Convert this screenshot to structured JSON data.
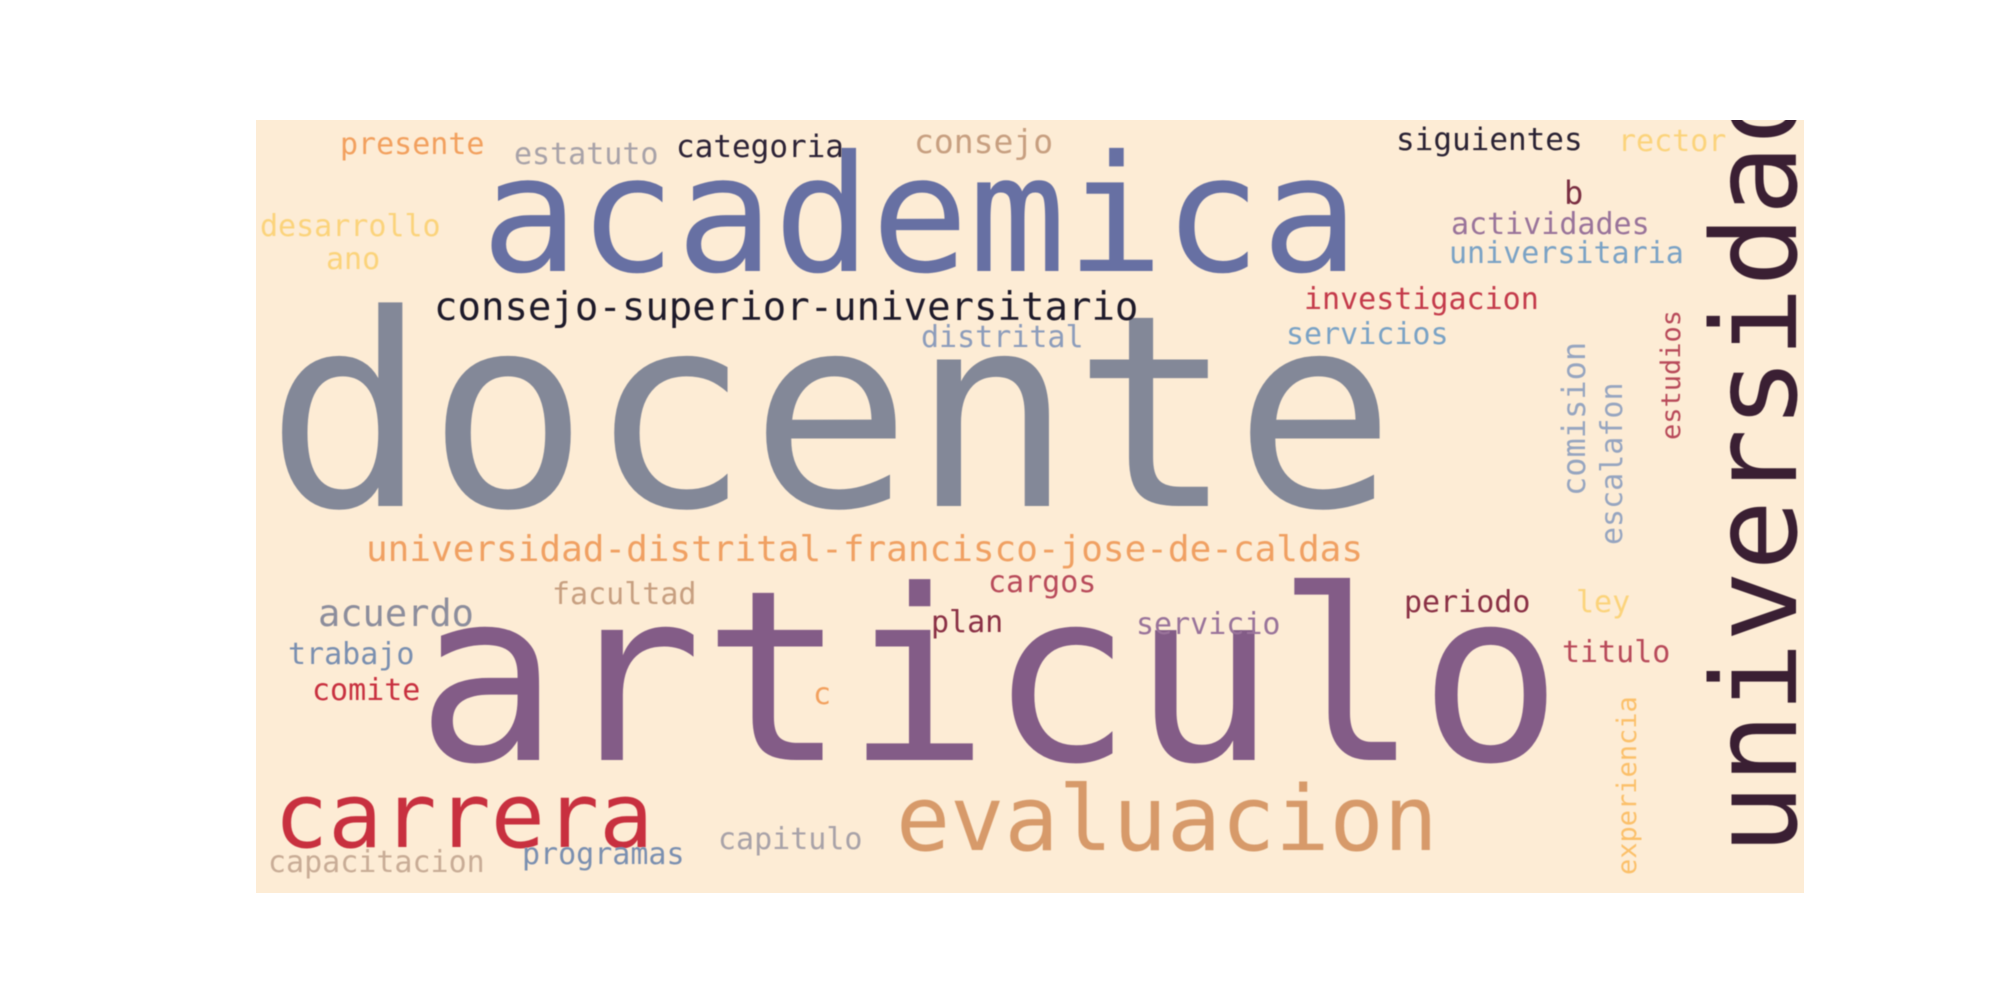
{
  "wordcloud": {
    "background_color": "#fdecd5",
    "words": [
      {
        "id": "docente",
        "text": "docente",
        "color": "#838898"
      },
      {
        "id": "articulo",
        "text": "articulo",
        "color": "#835c87"
      },
      {
        "id": "academica",
        "text": "academica",
        "color": "#6770a3"
      },
      {
        "id": "universidad",
        "text": "universidad",
        "color": "#3a1f33"
      },
      {
        "id": "evaluacion",
        "text": "evaluacion",
        "color": "#d79a6a"
      },
      {
        "id": "carrera",
        "text": "carrera",
        "color": "#c8303f"
      },
      {
        "id": "consejo_superior_universitario",
        "text": "consejo-superior-universitario",
        "color": "#1e1a2a"
      },
      {
        "id": "universidad_distrital_francisco_jose_de_caldas",
        "text": "universidad-distrital-francisco-jose-de-caldas",
        "color": "#f0a062"
      },
      {
        "id": "acuerdo",
        "text": "acuerdo",
        "color": "#8c8d9c"
      },
      {
        "id": "consejo",
        "text": "consejo",
        "color": "#c79f80"
      },
      {
        "id": "siguientes",
        "text": "siguientes",
        "color": "#2a2233"
      },
      {
        "id": "categoria",
        "text": "categoria",
        "color": "#2c2236"
      },
      {
        "id": "estatuto",
        "text": "estatuto",
        "color": "#a8a2a8"
      },
      {
        "id": "presente",
        "text": "presente",
        "color": "#f2a05e"
      },
      {
        "id": "rector",
        "text": "rector",
        "color": "#fbd37b"
      },
      {
        "id": "desarrollo",
        "text": "desarrollo",
        "color": "#fbd37b"
      },
      {
        "id": "ano",
        "text": "ano",
        "color": "#fbd37b"
      },
      {
        "id": "b",
        "text": "b",
        "color": "#7a2e42"
      },
      {
        "id": "actividades",
        "text": "actividades",
        "color": "#99739a"
      },
      {
        "id": "universitaria",
        "text": "universitaria",
        "color": "#7aa2c5"
      },
      {
        "id": "investigacion",
        "text": "investigacion",
        "color": "#c43a4a"
      },
      {
        "id": "servicios",
        "text": "servicios",
        "color": "#7aa2c5"
      },
      {
        "id": "distrital",
        "text": "distrital",
        "color": "#8c9cbb"
      },
      {
        "id": "comision",
        "text": "comision",
        "color": "#96a5c0"
      },
      {
        "id": "escalafon",
        "text": "escalafon",
        "color": "#96a5c0"
      },
      {
        "id": "estudios",
        "text": "estudios",
        "color": "#b84a5a"
      },
      {
        "id": "facultad",
        "text": "facultad",
        "color": "#c79f80"
      },
      {
        "id": "cargos",
        "text": "cargos",
        "color": "#b84a5a"
      },
      {
        "id": "periodo",
        "text": "periodo",
        "color": "#8a3045"
      },
      {
        "id": "ley",
        "text": "ley",
        "color": "#fbd37b"
      },
      {
        "id": "plan",
        "text": "plan",
        "color": "#8a3045"
      },
      {
        "id": "servicio",
        "text": "servicio",
        "color": "#99739a"
      },
      {
        "id": "trabajo",
        "text": "trabajo",
        "color": "#7a8fb0"
      },
      {
        "id": "titulo",
        "text": "titulo",
        "color": "#b84a5a"
      },
      {
        "id": "comite",
        "text": "comite",
        "color": "#c8303f"
      },
      {
        "id": "c",
        "text": "c",
        "color": "#f2a05e"
      },
      {
        "id": "experiencia",
        "text": "experiencia",
        "color": "#fbc06a"
      },
      {
        "id": "capacitacion",
        "text": "capacitacion",
        "color": "#c8ac96"
      },
      {
        "id": "programas",
        "text": "programas",
        "color": "#7a8fb0"
      },
      {
        "id": "capitulo",
        "text": "capitulo",
        "color": "#a8a2a8"
      }
    ]
  }
}
